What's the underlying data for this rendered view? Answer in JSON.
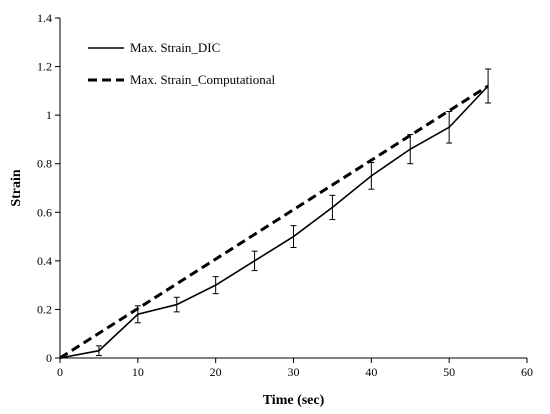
{
  "chart_data": {
    "type": "line",
    "title": "",
    "xlabel": "Time (sec)",
    "ylabel": "Strain",
    "xlim": [
      0,
      60
    ],
    "ylim": [
      0,
      1.4
    ],
    "x_ticks": [
      "0",
      "10",
      "20",
      "30",
      "40",
      "50",
      "60"
    ],
    "y_ticks": [
      "0",
      "0.2",
      "0.4",
      "0.6",
      "0.8",
      "1",
      "1.2",
      "1.4"
    ],
    "grid": false,
    "legend_position": "top-left",
    "series": [
      {
        "name": "Max. Strain_DIC",
        "style": "solid",
        "x": [
          0,
          5,
          10,
          15,
          20,
          25,
          30,
          35,
          40,
          45,
          50,
          55
        ],
        "y": [
          0,
          0.03,
          0.18,
          0.22,
          0.3,
          0.4,
          0.5,
          0.62,
          0.75,
          0.86,
          0.95,
          1.12
        ],
        "error": [
          0,
          0.02,
          0.035,
          0.03,
          0.035,
          0.04,
          0.045,
          0.05,
          0.055,
          0.06,
          0.065,
          0.07
        ]
      },
      {
        "name": "Max. Strain_Computational",
        "style": "dashed",
        "x": [
          0,
          55
        ],
        "y": [
          0,
          1.12
        ]
      }
    ]
  }
}
